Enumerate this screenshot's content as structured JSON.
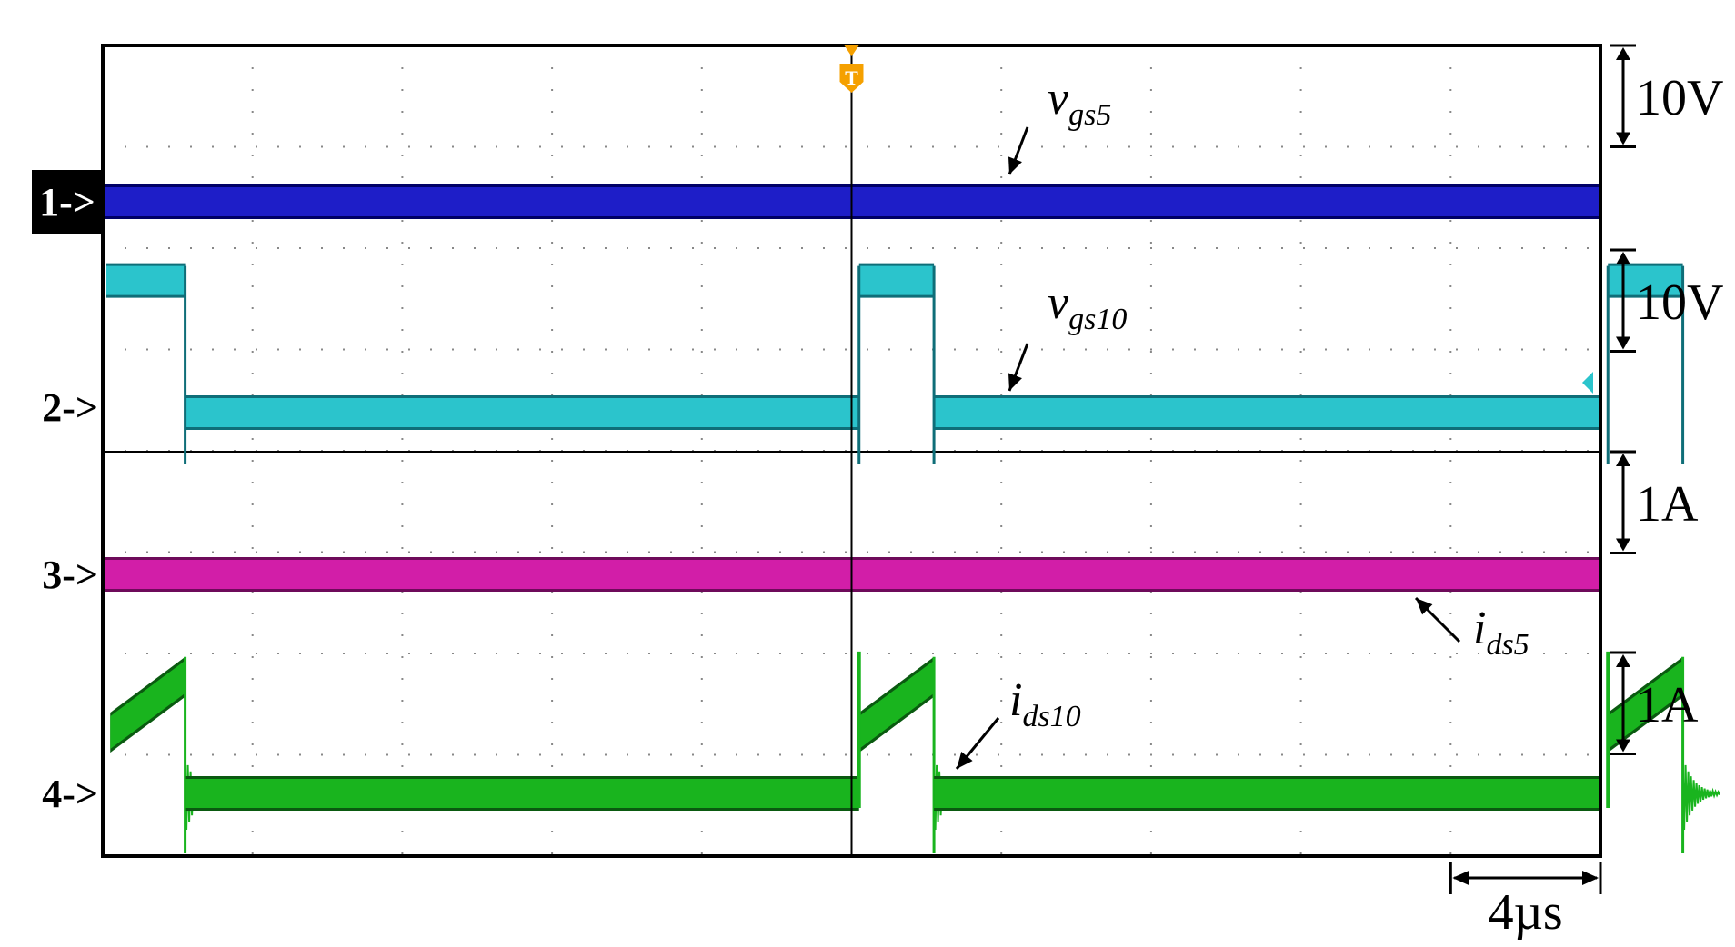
{
  "chart_data": {
    "type": "line",
    "title": "",
    "x_unit": "µs",
    "time_scale_label": "4µs",
    "time_per_division": 4,
    "divisions_x": 10,
    "divisions_y": 8,
    "grid": true,
    "trigger_marker": "T",
    "switching_period_us": 20,
    "high_time_us": 2,
    "rising_edges_us": [
      -19.8,
      0.2,
      20.2
    ],
    "falling_edges_us": [
      -17.8,
      2.2,
      22.2
    ],
    "channels": [
      {
        "id": 1,
        "label": "1->",
        "color": "#1e1ec8",
        "edge_color": "#000066",
        "kind": "constant",
        "level_div": 1.0,
        "scale_label": "10V",
        "scale_div": 1.0,
        "annotation": {
          "main": "v",
          "sub": "gs5"
        }
      },
      {
        "id": 2,
        "label": "2->",
        "color": "#2bc4cc",
        "edge_color": "#0f6e78",
        "kind": "pulse",
        "level_div": 0.0,
        "high_div": 1.25,
        "low_offset_div": 0.05,
        "scale_label": "10V",
        "scale_div": 1.0,
        "annotation": {
          "main": "v",
          "sub": "gs10"
        }
      },
      {
        "id": 3,
        "label": "3->",
        "color": "#d21ea8",
        "edge_color": "#6e0a5a",
        "kind": "constant",
        "level_div": 0.0,
        "scale_label": "1A",
        "scale_div": 1.0,
        "annotation": {
          "main": "i",
          "sub": "ds5"
        }
      },
      {
        "id": 4,
        "label": "4->",
        "color": "#19b41e",
        "edge_color": "#0a5a10",
        "kind": "ramp",
        "level_div": 0.0,
        "ramp_start_div": 0.6,
        "ramp_end_div": 1.15,
        "spike_div": 1.4,
        "low_offset_div": -0.05,
        "scale_label": "1A",
        "scale_div": 1.0,
        "annotation": {
          "main": "i",
          "sub": "ds10"
        }
      }
    ]
  }
}
